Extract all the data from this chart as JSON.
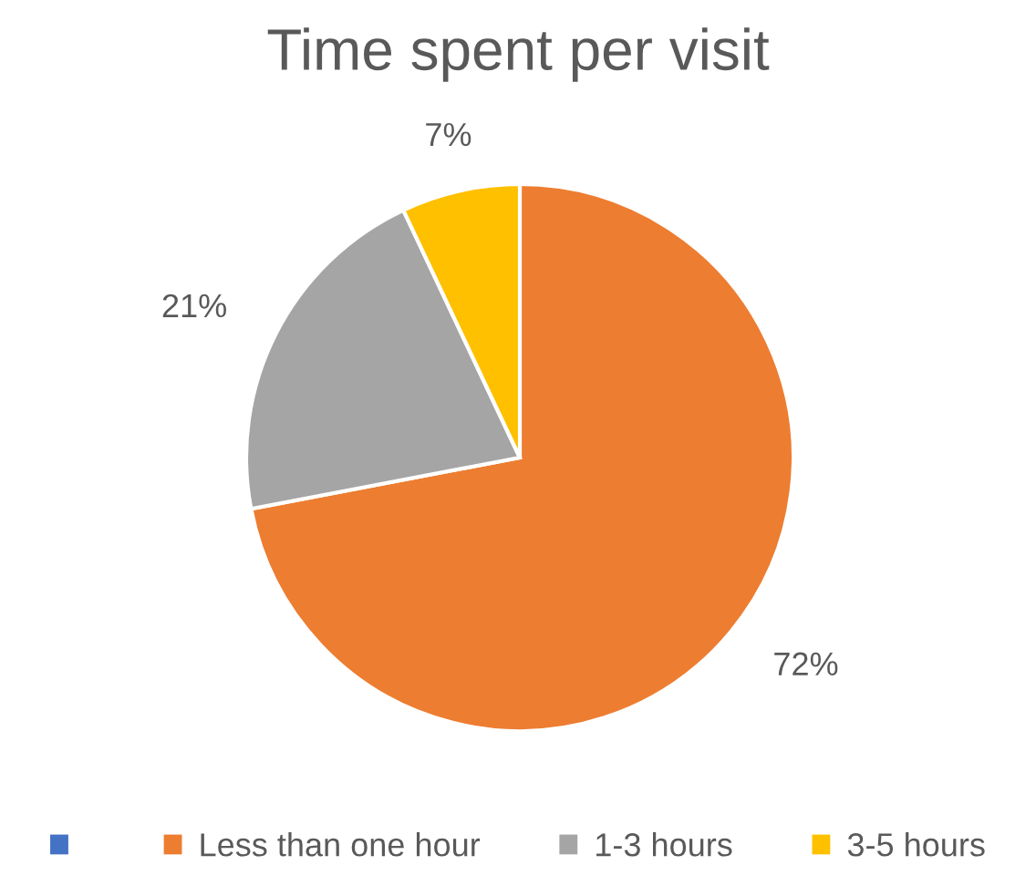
{
  "chart_data": {
    "type": "pie",
    "title": "Time spent per visit",
    "categories": [
      null,
      "Less than one hour",
      "1-3 hours",
      "3-5 hours"
    ],
    "values": [
      0,
      72,
      21,
      7
    ],
    "colors": [
      "#4472c4",
      "#ed7d31",
      "#a5a5a5",
      "#ffc000"
    ],
    "value_labels": [
      null,
      "72%",
      "21%",
      "7%"
    ],
    "legend": "bottom"
  }
}
